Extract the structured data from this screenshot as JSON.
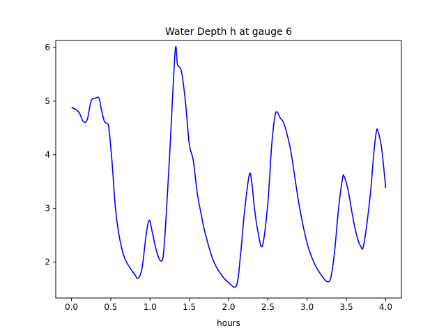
{
  "chart_data": {
    "type": "line",
    "title": "Water Depth h at gauge 6",
    "xlabel": "hours",
    "ylabel": "",
    "xlim": [
      -0.2,
      4.2
    ],
    "ylim": [
      1.33,
      6.13
    ],
    "xticks": [
      0.0,
      0.5,
      1.0,
      1.5,
      2.0,
      2.5,
      3.0,
      3.5,
      4.0
    ],
    "xtick_labels": [
      "0.0",
      "0.5",
      "1.0",
      "1.5",
      "2.0",
      "2.5",
      "3.0",
      "3.5",
      "4.0"
    ],
    "yticks": [
      2,
      3,
      4,
      5,
      6
    ],
    "ytick_labels": [
      "2",
      "3",
      "4",
      "5",
      "6"
    ],
    "grid": false,
    "series": [
      {
        "name": "",
        "color": "#0000ff",
        "x": [
          0.0,
          0.05,
          0.1,
          0.15,
          0.2,
          0.25,
          0.3,
          0.35,
          0.38,
          0.42,
          0.46,
          0.48,
          0.52,
          0.56,
          0.6,
          0.65,
          0.7,
          0.8,
          0.85,
          0.9,
          0.95,
          0.99,
          1.03,
          1.08,
          1.14,
          1.18,
          1.25,
          1.32,
          1.35,
          1.4,
          1.45,
          1.5,
          1.55,
          1.6,
          1.65,
          1.7,
          1.8,
          1.9,
          2.0,
          2.1,
          2.15,
          2.2,
          2.26,
          2.29,
          2.33,
          2.37,
          2.43,
          2.5,
          2.55,
          2.6,
          2.66,
          2.7,
          2.75,
          2.8,
          2.9,
          3.0,
          3.1,
          3.2,
          3.25,
          3.3,
          3.35,
          3.4,
          3.45,
          3.47,
          3.52,
          3.58,
          3.63,
          3.68,
          3.72,
          3.8,
          3.85,
          3.88,
          3.9,
          3.95,
          4.0
        ],
        "y": [
          4.88,
          4.85,
          4.78,
          4.62,
          4.65,
          5.0,
          5.05,
          5.06,
          4.85,
          4.62,
          4.58,
          4.45,
          3.8,
          3.0,
          2.55,
          2.2,
          2.0,
          1.78,
          1.7,
          1.9,
          2.5,
          2.78,
          2.55,
          2.22,
          2.02,
          2.3,
          4.0,
          5.93,
          5.68,
          5.55,
          5.0,
          4.2,
          3.9,
          3.3,
          2.9,
          2.55,
          2.05,
          1.78,
          1.62,
          1.56,
          2.1,
          2.9,
          3.6,
          3.55,
          3.0,
          2.6,
          2.3,
          3.1,
          4.2,
          4.78,
          4.68,
          4.6,
          4.35,
          4.0,
          3.05,
          2.35,
          1.95,
          1.72,
          1.64,
          1.7,
          2.2,
          3.0,
          3.55,
          3.6,
          3.35,
          2.85,
          2.5,
          2.3,
          2.32,
          3.2,
          4.05,
          4.42,
          4.45,
          4.1,
          3.38
        ]
      }
    ]
  }
}
